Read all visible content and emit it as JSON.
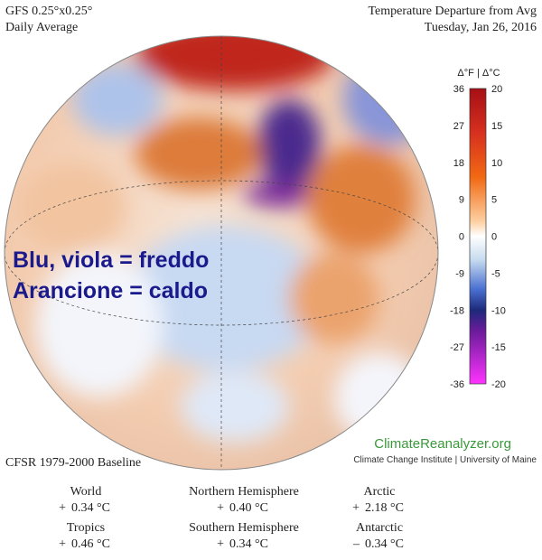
{
  "header": {
    "model": "GFS 0.25°x0.25°",
    "period": "Daily Average",
    "title": "Temperature Departure from Avg",
    "date": "Tuesday, Jan 26, 2016"
  },
  "colorbar": {
    "title": "Δ°F | Δ°C",
    "fahrenheit": [
      36,
      27,
      18,
      9,
      0,
      -9,
      -18,
      -27,
      -36
    ],
    "celsius": [
      20,
      15,
      10,
      5,
      0,
      -5,
      -10,
      -15,
      -20
    ]
  },
  "overlay": {
    "line1": "Blu, viola = freddo",
    "line2": "Arancione = caldo"
  },
  "branding": {
    "site": "ClimateReanalyzer.org",
    "institute": "Climate Change Institute | University of Maine"
  },
  "baseline": "CFSR 1979-2000 Baseline",
  "stats": [
    {
      "label": "World",
      "sign": "+",
      "value": "0.34 °C"
    },
    {
      "label": "Northern Hemisphere",
      "sign": "+",
      "value": "0.40 °C"
    },
    {
      "label": "Arctic",
      "sign": "+",
      "value": "2.18 °C"
    },
    {
      "label": "Tropics",
      "sign": "+",
      "value": "0.46 °C"
    },
    {
      "label": "Southern Hemisphere",
      "sign": "+",
      "value": "0.34 °C"
    },
    {
      "label": "Antarctic",
      "sign": "–",
      "value": "0.34 °C"
    }
  ]
}
